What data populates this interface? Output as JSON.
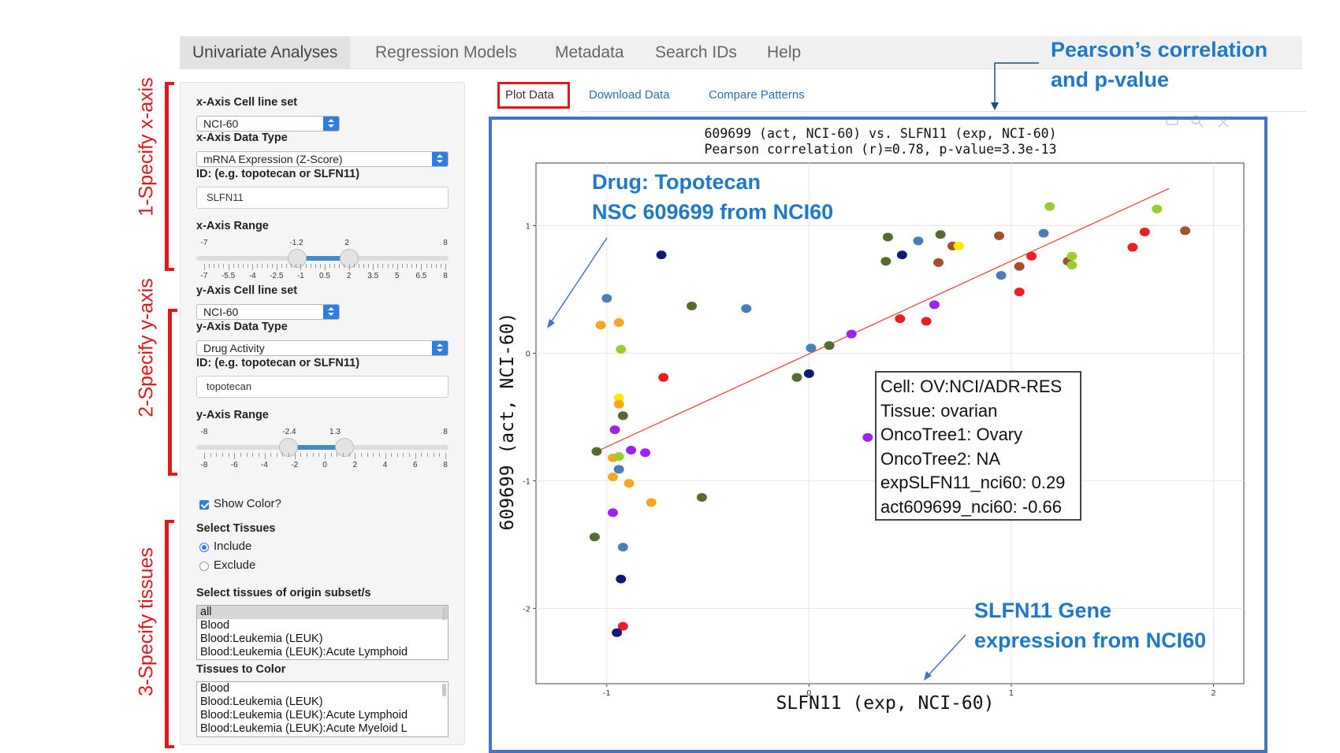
{
  "nav": {
    "tabs": [
      {
        "label": "Univariate Analyses",
        "active": true
      },
      {
        "label": "Regression Models",
        "active": false
      },
      {
        "label": "Metadata",
        "active": false
      },
      {
        "label": "Search IDs",
        "active": false
      },
      {
        "label": "Help",
        "active": false
      }
    ]
  },
  "annotations": {
    "x_axis": "1-Specify x-axis",
    "y_axis": "2-Specify y-axis",
    "tissues": "3-Specify tissues",
    "pearson_line1": "Pearson’s correlation",
    "pearson_line2": "and p-value",
    "drug_line1": "Drug: Topotecan",
    "drug_line2": "NSC 609699 from NCI60",
    "gene_line1": "SLFN11 Gene",
    "gene_line2": "expression from NCI60",
    "red_color": "#e0181c",
    "blue_color": "#1f78c8"
  },
  "sidebar": {
    "x_cellset_label": "x-Axis Cell line set",
    "x_cellset_value": "NCI-60",
    "x_datatype_label": "x-Axis Data Type",
    "x_datatype_value": "mRNA Expression (Z-Score)",
    "x_id_label": "ID: (e.g. topotecan or SLFN11)",
    "x_id_value": "SLFN11",
    "x_range_label": "x-Axis Range",
    "x_range": {
      "min": "-7",
      "max": "8",
      "low": "-1.2",
      "high": "2",
      "low_value": -1.2,
      "high_value": 2,
      "min_value": -7,
      "max_value": 8,
      "ticks": [
        "-7",
        "-5.5",
        "-4",
        "-2.5",
        "-1",
        "0.5",
        "2",
        "3.5",
        "5",
        "6.5",
        "8"
      ]
    },
    "y_cellset_label": "y-Axis Cell line set",
    "y_cellset_value": "NCI-60",
    "y_datatype_label": "y-Axis Data Type",
    "y_datatype_value": "Drug Activity",
    "y_id_label": "ID: (e.g. topotecan or SLFN11)",
    "y_id_value": "topotecan",
    "y_range_label": "y-Axis Range",
    "y_range": {
      "min": "-8",
      "max": "8",
      "low": "-2.4",
      "high": "1.3",
      "low_value": -2.4,
      "high_value": 1.3,
      "min_value": -8,
      "max_value": 8,
      "ticks": [
        "-8",
        "-6",
        "-4",
        "-2",
        "0",
        "2",
        "4",
        "6",
        "8"
      ]
    },
    "show_color_label": "Show Color?",
    "show_color_checked": true,
    "select_tissues_label": "Select Tissues",
    "include_label": "Include",
    "exclude_label": "Exclude",
    "include_selected": true,
    "subset_label": "Select tissues of origin subset/s",
    "subset_items": [
      "all",
      "Blood",
      "Blood:Leukemia (LEUK)",
      "Blood:Leukemia (LEUK):Acute Lymphoid"
    ],
    "color_label": "Tissues to Color",
    "color_items": [
      "Blood",
      "Blood:Leukemia (LEUK)",
      "Blood:Leukemia (LEUK):Acute Lymphoid",
      "Blood:Leukemia (LEUK):Acute Myeloid L"
    ]
  },
  "tabs": [
    {
      "label": "Plot Data",
      "active": true
    },
    {
      "label": "Download Data",
      "active": false
    },
    {
      "label": "Compare Patterns",
      "active": false
    }
  ],
  "tooltip": {
    "lines": [
      "Cell: OV:NCI/ADR-RES",
      "Tissue: ovarian",
      "OncoTree1: Ovary",
      "OncoTree2: NA",
      "expSLFN11_nci60: 0.29",
      "act609699_nci60: -0.66"
    ]
  },
  "chart_data": {
    "type": "scatter",
    "title": "609699 (act, NCI-60) vs. SLFN11 (exp, NCI-60)",
    "subtitle": "Pearson correlation (r)=0.78, p-value=3.3e-13",
    "xlabel": "SLFN11 (exp, NCI-60)",
    "ylabel": "609699 (act, NCI-60)",
    "xlim": [
      -1.35,
      2.15
    ],
    "ylim": [
      -2.59,
      1.49
    ],
    "x_ticks": [
      -1,
      0,
      1,
      2
    ],
    "y_ticks": [
      -2,
      -1,
      0,
      1
    ],
    "grid": true,
    "regression_line": {
      "x": [
        -1.05,
        1.78
      ],
      "y": [
        -0.77,
        1.29
      ],
      "color": "#e74c3c"
    },
    "points": [
      {
        "x": -1.0,
        "y": 0.43,
        "color": "#4a7fb5"
      },
      {
        "x": -1.03,
        "y": 0.22,
        "color": "#f5a623"
      },
      {
        "x": -0.94,
        "y": 0.24,
        "color": "#f5a623"
      },
      {
        "x": -0.93,
        "y": 0.03,
        "color": "#9acd32"
      },
      {
        "x": -0.73,
        "y": 0.77,
        "color": "#0d1a7a"
      },
      {
        "x": -0.58,
        "y": 0.37,
        "color": "#556b2f"
      },
      {
        "x": -0.31,
        "y": 0.35,
        "color": "#4a7fb5"
      },
      {
        "x": -0.72,
        "y": -0.19,
        "color": "#ee1c25"
      },
      {
        "x": -0.94,
        "y": -0.35,
        "color": "#ffea00"
      },
      {
        "x": -0.94,
        "y": -0.4,
        "color": "#f5a623"
      },
      {
        "x": -0.92,
        "y": -0.49,
        "color": "#556b2f"
      },
      {
        "x": -0.96,
        "y": -0.6,
        "color": "#a020f0"
      },
      {
        "x": -1.05,
        "y": -0.77,
        "color": "#556b2f"
      },
      {
        "x": -0.97,
        "y": -0.82,
        "color": "#f5a623"
      },
      {
        "x": -0.94,
        "y": -0.81,
        "color": "#9acd32"
      },
      {
        "x": -0.88,
        "y": -0.76,
        "color": "#a020f0"
      },
      {
        "x": -0.81,
        "y": -0.78,
        "color": "#a020f0"
      },
      {
        "x": -0.94,
        "y": -0.91,
        "color": "#4a7fb5"
      },
      {
        "x": -0.97,
        "y": -0.97,
        "color": "#f5a623"
      },
      {
        "x": -0.89,
        "y": -1.02,
        "color": "#f5a623"
      },
      {
        "x": -0.78,
        "y": -1.17,
        "color": "#f5a623"
      },
      {
        "x": -0.53,
        "y": -1.13,
        "color": "#556b2f"
      },
      {
        "x": -0.97,
        "y": -1.25,
        "color": "#a020f0"
      },
      {
        "x": -1.06,
        "y": -1.44,
        "color": "#556b2f"
      },
      {
        "x": -0.92,
        "y": -1.52,
        "color": "#4a7fb5"
      },
      {
        "x": -0.93,
        "y": -1.77,
        "color": "#0d1a7a"
      },
      {
        "x": -0.92,
        "y": -2.14,
        "color": "#ee1c25"
      },
      {
        "x": -0.95,
        "y": -2.19,
        "color": "#0d1a7a"
      },
      {
        "x": 0.01,
        "y": 0.04,
        "color": "#4a7fb5"
      },
      {
        "x": 0.1,
        "y": 0.06,
        "color": "#556b2f"
      },
      {
        "x": 0.21,
        "y": 0.15,
        "color": "#a020f0"
      },
      {
        "x": -0.06,
        "y": -0.19,
        "color": "#556b2f"
      },
      {
        "x": 0.0,
        "y": -0.16,
        "color": "#0d1a7a"
      },
      {
        "x": 0.29,
        "y": -0.66,
        "color": "#a020f0"
      },
      {
        "x": 0.39,
        "y": 0.91,
        "color": "#556b2f"
      },
      {
        "x": 0.38,
        "y": 0.72,
        "color": "#556b2f"
      },
      {
        "x": 0.46,
        "y": 0.77,
        "color": "#0d1a7a"
      },
      {
        "x": 0.54,
        "y": 0.88,
        "color": "#4a7fb5"
      },
      {
        "x": 0.65,
        "y": 0.93,
        "color": "#556b2f"
      },
      {
        "x": 0.64,
        "y": 0.71,
        "color": "#a0522d"
      },
      {
        "x": 0.71,
        "y": 0.84,
        "color": "#a0522d"
      },
      {
        "x": 0.74,
        "y": 0.84,
        "color": "#ffea00"
      },
      {
        "x": 0.94,
        "y": 0.92,
        "color": "#a0522d"
      },
      {
        "x": 1.16,
        "y": 0.94,
        "color": "#4a7fb5"
      },
      {
        "x": 0.95,
        "y": 0.61,
        "color": "#4a7fb5"
      },
      {
        "x": 1.04,
        "y": 0.68,
        "color": "#a0522d"
      },
      {
        "x": 1.1,
        "y": 0.76,
        "color": "#ee1c25"
      },
      {
        "x": 1.19,
        "y": 1.15,
        "color": "#9acd32"
      },
      {
        "x": 1.28,
        "y": 0.72,
        "color": "#a0522d"
      },
      {
        "x": 1.3,
        "y": 0.76,
        "color": "#9acd32"
      },
      {
        "x": 1.3,
        "y": 0.69,
        "color": "#9acd32"
      },
      {
        "x": 1.04,
        "y": 0.48,
        "color": "#ee1c25"
      },
      {
        "x": 0.62,
        "y": 0.38,
        "color": "#a020f0"
      },
      {
        "x": 0.45,
        "y": 0.27,
        "color": "#ee1c25"
      },
      {
        "x": 0.58,
        "y": 0.25,
        "color": "#ee1c25"
      },
      {
        "x": 1.6,
        "y": 0.83,
        "color": "#ee1c25"
      },
      {
        "x": 1.66,
        "y": 0.95,
        "color": "#ee1c25"
      },
      {
        "x": 1.72,
        "y": 1.13,
        "color": "#9acd32"
      },
      {
        "x": 1.86,
        "y": 0.96,
        "color": "#a0522d"
      }
    ]
  }
}
